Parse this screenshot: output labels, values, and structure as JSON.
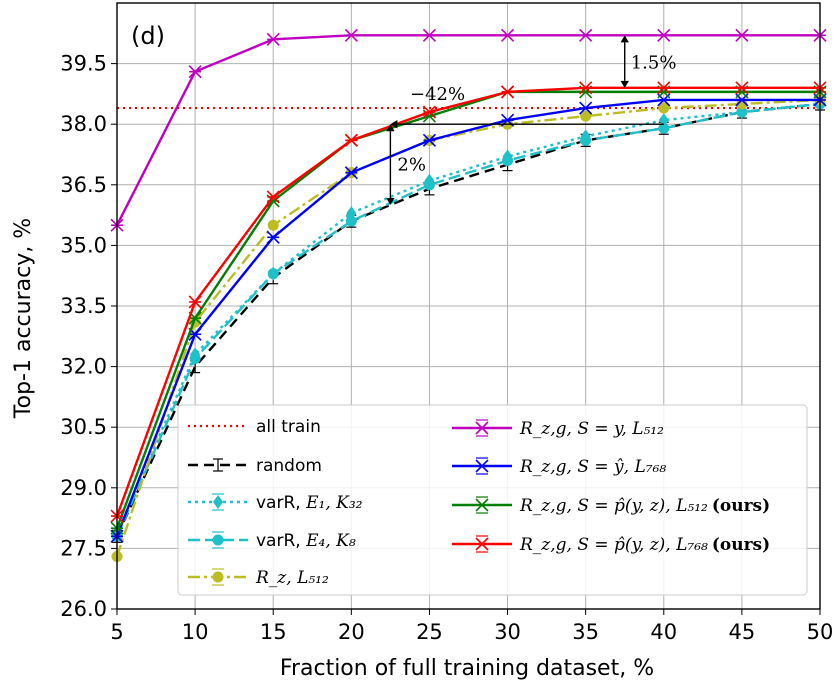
{
  "chart_data": {
    "type": "line",
    "panel_label": "(d)",
    "xlabel": "Fraction of full training dataset, %",
    "ylabel": "Top-1 accuracy, %",
    "xlim": [
      5,
      50
    ],
    "ylim": [
      26.0,
      41.0
    ],
    "xticks": [
      "5",
      "10",
      "15",
      "20",
      "25",
      "30",
      "35",
      "40",
      "45",
      "50"
    ],
    "yticks": [
      "26.0",
      "27.5",
      "29.0",
      "30.5",
      "32.0",
      "33.5",
      "35.0",
      "36.5",
      "38.0",
      "39.5"
    ],
    "x": [
      5,
      10,
      15,
      20,
      25,
      30,
      35,
      40,
      45,
      50
    ],
    "reference_line": {
      "name": "all train",
      "value": 38.4,
      "color": "#ff0000"
    },
    "series": [
      {
        "name": "random",
        "color": "#000000",
        "dash": "10,6",
        "marker": "none",
        "values": [
          27.8,
          32.0,
          34.2,
          35.6,
          36.4,
          37.0,
          37.6,
          37.9,
          38.3,
          38.5
        ]
      },
      {
        "name": "varR, E1, K32",
        "color": "#1fc0c8",
        "dash": "3,4",
        "marker": "diamond",
        "values": [
          27.9,
          32.3,
          34.3,
          35.8,
          36.6,
          37.2,
          37.7,
          38.1,
          38.3,
          38.5
        ]
      },
      {
        "name": "varR, E4, K8",
        "color": "#1fc0c8",
        "dash": "12,5",
        "marker": "circle",
        "values": [
          27.8,
          32.2,
          34.3,
          35.6,
          36.5,
          37.1,
          37.6,
          37.9,
          38.3,
          38.5
        ]
      },
      {
        "name": "Rz, L512",
        "color": "#bcbd22",
        "dash": "12,4,3,4",
        "marker": "circle",
        "values": [
          27.3,
          33.1,
          35.5,
          36.8,
          37.6,
          38.0,
          38.2,
          38.4,
          38.5,
          38.6
        ]
      },
      {
        "name": "Rz,g, S=y, L512",
        "color": "#c000c0",
        "dash": "",
        "marker": "x",
        "values": [
          35.5,
          39.3,
          40.1,
          40.2,
          40.2,
          40.2,
          40.2,
          40.2,
          40.2,
          40.2
        ]
      },
      {
        "name": "Rz,g, S=ŷ, L768",
        "color": "#0000ff",
        "dash": "",
        "marker": "x",
        "values": [
          27.8,
          32.8,
          35.2,
          36.8,
          37.6,
          38.1,
          38.4,
          38.6,
          38.6,
          38.6
        ]
      },
      {
        "name": "Rz,g, S=p̂(y,z), L512 (ours)",
        "color": "#008000",
        "dash": "",
        "marker": "x",
        "values": [
          28.0,
          33.2,
          36.1,
          37.6,
          38.2,
          38.8,
          38.8,
          38.8,
          38.8,
          38.8
        ]
      },
      {
        "name": "Rz,g, S=p̂(y,z), L768 (ours)",
        "color": "#ff0000",
        "dash": "",
        "marker": "x",
        "values": [
          28.3,
          33.6,
          36.2,
          37.6,
          38.3,
          38.8,
          38.9,
          38.9,
          38.9,
          38.9
        ]
      }
    ],
    "annotations": [
      {
        "text": "1.5%",
        "x": 37.5,
        "y_from": 38.9,
        "y_to": 40.2
      },
      {
        "text": "2%",
        "x": 22.5,
        "y_from": 36.0,
        "y_to": 38.0
      },
      {
        "text": "−42%",
        "x_from": 22.5,
        "x_to": 40.0,
        "y": 38.0
      }
    ],
    "legend": {
      "placement": "bottom",
      "left": [
        {
          "label": "all train",
          "math": "",
          "bold": ""
        },
        {
          "label": "random",
          "math": "",
          "bold": ""
        },
        {
          "label": "varR, ",
          "math": "E₁, K₃₂",
          "bold": ""
        },
        {
          "label": "varR, ",
          "math": "E₄, K₈",
          "bold": ""
        },
        {
          "label": "",
          "math": "R_z, L₅₁₂",
          "bold": ""
        }
      ],
      "right": [
        {
          "label": "",
          "math": "R_z,g, S = y, L₅₁₂",
          "bold": ""
        },
        {
          "label": "",
          "math": "R_z,g, S = ŷ, L₇₆₈",
          "bold": ""
        },
        {
          "label": "",
          "math": "R_z,g, S = p̂(y, z), L₅₁₂",
          "bold": "(ours)"
        },
        {
          "label": "",
          "math": "R_z,g, S = p̂(y, z), L₇₆₈",
          "bold": "(ours)"
        }
      ]
    }
  }
}
